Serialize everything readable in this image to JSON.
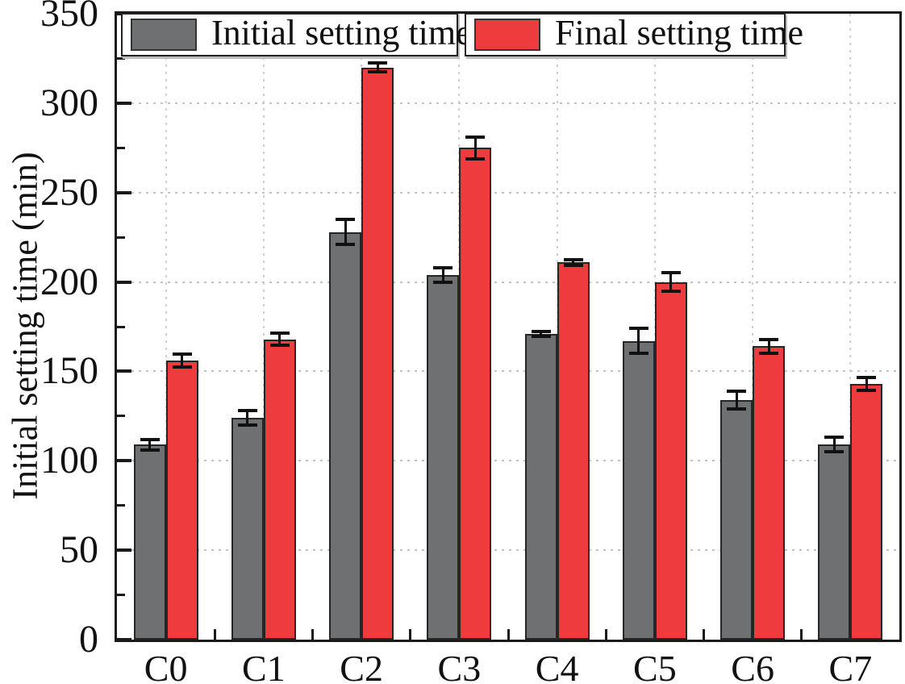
{
  "chart_data": {
    "type": "bar",
    "title": "",
    "ylabel": "Initial setting time (min)",
    "xlabel": "",
    "ylim": [
      0,
      350
    ],
    "ytick_step": 50,
    "yminor_step": 25,
    "yticks": [
      "0",
      "50",
      "100",
      "150",
      "200",
      "250",
      "300",
      "350"
    ],
    "grid": true,
    "legend_position": "top-inside",
    "categories": [
      "C0",
      "C1",
      "C2",
      "C3",
      "C4",
      "C5",
      "C6",
      "C7"
    ],
    "series": [
      {
        "name": "Initial setting time",
        "color": "#6f7072",
        "values": [
          109,
          124,
          228,
          204,
          171,
          167,
          134,
          109
        ],
        "errors": [
          3,
          4,
          7,
          4,
          1.5,
          7,
          5,
          4
        ]
      },
      {
        "name": "Final setting time",
        "color": "#ee3b3e",
        "values": [
          156,
          168,
          320,
          275,
          211,
          200,
          164,
          143
        ],
        "errors": [
          3.5,
          3.5,
          2.5,
          6,
          1.5,
          5,
          4,
          3.5
        ]
      }
    ],
    "colors": {
      "axis": "#1a1a1a",
      "grid_h": "#c3c3c3",
      "grid_v": "#cfcfcf",
      "bar_border": "#262626",
      "error_bar": "#111111"
    }
  }
}
